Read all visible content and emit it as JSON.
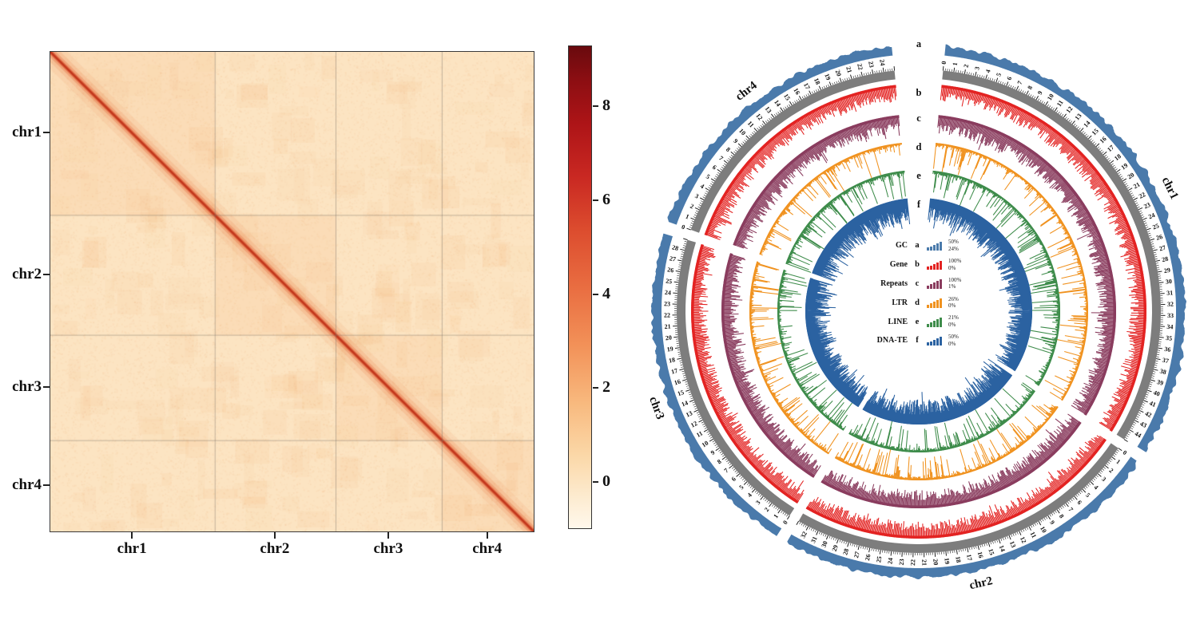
{
  "figure": {
    "background": "#ffffff"
  },
  "chart_data": [
    {
      "type": "heatmap",
      "name": "hic-contact-matrix",
      "x_categories": [
        "chr1",
        "chr2",
        "chr3",
        "chr4"
      ],
      "y_categories": [
        "chr1",
        "chr2",
        "chr3",
        "chr4"
      ],
      "chromosome_sizes_mb": [
        45,
        33,
        29,
        25
      ],
      "pattern": "strong high-intensity main diagonal across all chromosome blocks; faint plaid texture; near-uniform low background off-diagonal",
      "base_color": "#fce4c2",
      "diagonal_color": "#c2371c",
      "grid_color": "rgba(120,110,100,0.55)",
      "border_color": "#3a3a3a",
      "colorbar": {
        "ticks": [
          8,
          6,
          4,
          2,
          0
        ],
        "value_range": [
          -1,
          9.3
        ],
        "stops": [
          {
            "pos": 0.0,
            "color": "#690a0e"
          },
          {
            "pos": 0.07,
            "color": "#8c0e12"
          },
          {
            "pos": 0.16,
            "color": "#ad1417"
          },
          {
            "pos": 0.27,
            "color": "#c92822"
          },
          {
            "pos": 0.38,
            "color": "#dc4c2e"
          },
          {
            "pos": 0.5,
            "color": "#e96d41"
          },
          {
            "pos": 0.62,
            "color": "#f29158"
          },
          {
            "pos": 0.74,
            "color": "#f8b97e"
          },
          {
            "pos": 0.85,
            "color": "#fbd8a8"
          },
          {
            "pos": 0.94,
            "color": "#fdecd2"
          },
          {
            "pos": 1.0,
            "color": "#fff8ec"
          }
        ]
      }
    },
    {
      "type": "circos",
      "name": "genome-feature-circos",
      "chromosomes": [
        {
          "name": "chr1",
          "size_mb": 45
        },
        {
          "name": "chr2",
          "size_mb": 33
        },
        {
          "name": "chr3",
          "size_mb": 29
        },
        {
          "name": "chr4",
          "size_mb": 25
        }
      ],
      "scale_tick_interval_mb": 1,
      "scale_minor_tick_mb": 0.2,
      "axis_ring_color": "#7d7d7d",
      "tick_color": "#222222",
      "label_color": "#111111",
      "tracks": [
        {
          "letter": "a",
          "label": "GC",
          "color": "#4a7aab",
          "max": "50%",
          "min": "24%",
          "style": "band"
        },
        {
          "letter": "b",
          "label": "Gene",
          "color": "#e32322",
          "max": "100%",
          "min": "0%",
          "style": "dense"
        },
        {
          "letter": "c",
          "label": "Repeats",
          "color": "#8a3c5e",
          "max": "100%",
          "min": "1%",
          "style": "dense"
        },
        {
          "letter": "d",
          "label": "LTR",
          "color": "#f0921f",
          "max": "26%",
          "min": "0%",
          "style": "sparse"
        },
        {
          "letter": "e",
          "label": "LINE",
          "color": "#3e8c4b",
          "max": "21%",
          "min": "0%",
          "style": "sparse"
        },
        {
          "letter": "f",
          "label": "DNA-TE",
          "color": "#2b62a1",
          "max": "50%",
          "min": "0%",
          "style": "dense2"
        }
      ]
    }
  ]
}
